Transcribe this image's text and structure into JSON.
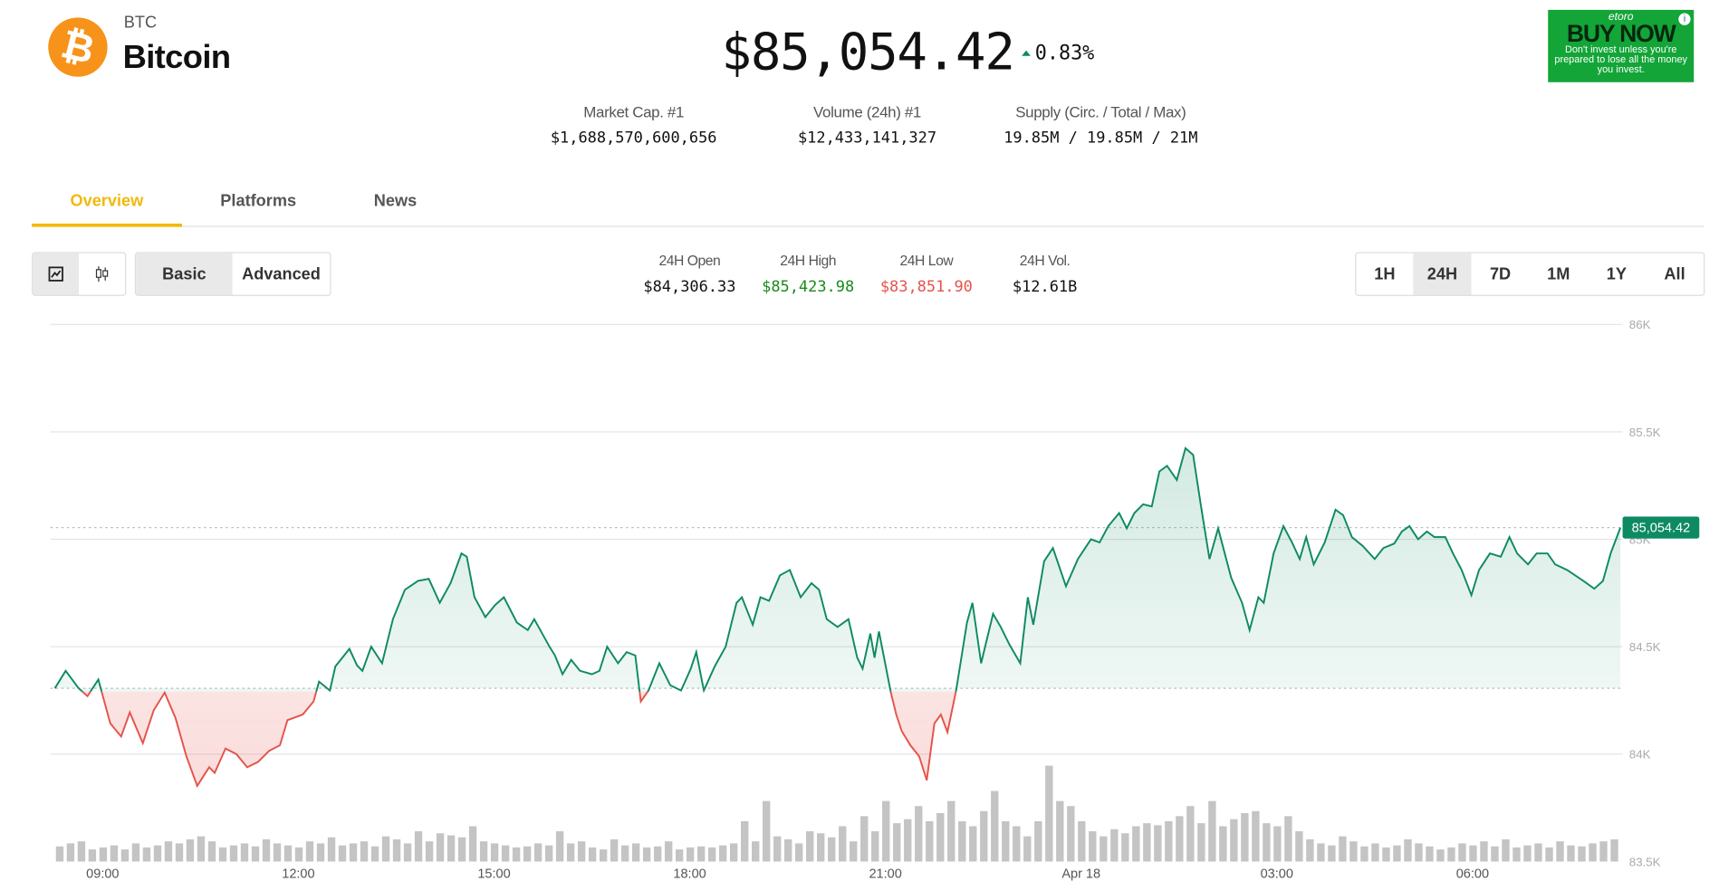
{
  "coin": {
    "symbol": "BTC",
    "name": "Bitcoin",
    "logo_icon": "bitcoin-logo-icon",
    "price": "$85,054.42",
    "change": "0.83%",
    "change_direction": "up"
  },
  "stats": [
    {
      "label": "Market Cap. #1",
      "value": "$1,688,570,600,656"
    },
    {
      "label": "Volume (24h) #1",
      "value": "$12,433,141,327"
    },
    {
      "label": "Supply (Circ. / Total / Max)",
      "value": "19.85M / 19.85M / 21M"
    }
  ],
  "ad": {
    "brand": "etoro",
    "cta": "BUY NOW",
    "disclaimer": "Don't invest unless you're prepared to lose all the money you invest."
  },
  "tabs": [
    {
      "label": "Overview",
      "active": true
    },
    {
      "label": "Platforms"
    },
    {
      "label": "News"
    }
  ],
  "chart_type_buttons": [
    {
      "icon": "line-chart-icon",
      "selected": true
    },
    {
      "icon": "candlestick-icon"
    }
  ],
  "mode_buttons": [
    {
      "label": "Basic",
      "selected": true
    },
    {
      "label": "Advanced"
    }
  ],
  "ohlv": [
    {
      "label": "24H Open",
      "value": "$84,306.33",
      "color": "#111111"
    },
    {
      "label": "24H High",
      "value": "$85,423.98",
      "color": "#1a8a1a"
    },
    {
      "label": "24H Low",
      "value": "$83,851.90",
      "color": "#e5534b"
    },
    {
      "label": "24H Vol.",
      "value": "$12.61B",
      "color": "#111111"
    }
  ],
  "ranges": [
    {
      "label": "1H"
    },
    {
      "label": "24H",
      "selected": true
    },
    {
      "label": "7D"
    },
    {
      "label": "1M"
    },
    {
      "label": "1Y"
    },
    {
      "label": "All"
    }
  ],
  "colors": {
    "up": "#0e8a63",
    "down": "#e5534b",
    "accent": "#f0b90b",
    "volume": "#c4c4c4"
  },
  "chart_data": {
    "type": "line",
    "ylim": [
      83500,
      86000
    ],
    "y_ticks": [
      "86K",
      "85.5K",
      "85K",
      "84.5K",
      "84K",
      "83.5K"
    ],
    "y_tick_values": [
      86000,
      85500,
      85000,
      84500,
      84000,
      83500
    ],
    "x_ticks": [
      "09:00",
      "12:00",
      "15:00",
      "18:00",
      "21:00",
      "Apr 18",
      "03:00",
      "06:00"
    ],
    "baseline": 84306.33,
    "current_label": "85,054.42",
    "current": 85054.42,
    "grid": true,
    "series": [
      {
        "time": [
          "08:16",
          "08:26",
          "08:38",
          "08:46",
          "08:56",
          "09:07",
          "09:17",
          "09:25",
          "09:37",
          "09:47",
          "09:57",
          "10:07",
          "10:17",
          "10:27",
          "10:38",
          "10:43",
          "10:53",
          "11:03",
          "11:13",
          "11:23",
          "11:33",
          "11:43",
          "11:50",
          "12:04",
          "12:14",
          "12:19",
          "12:29",
          "12:34",
          "12:47",
          "12:54",
          "12:59",
          "13:07",
          "13:17",
          "13:27",
          "13:38",
          "13:50",
          "14:00",
          "14:10",
          "14:20",
          "14:30",
          "14:35",
          "14:42",
          "14:52",
          "15:01",
          "15:09",
          "15:21",
          "15:31",
          "15:37",
          "15:51",
          "15:56",
          "16:03",
          "16:11",
          "16:19",
          "16:30",
          "16:37",
          "16:44",
          "16:54",
          "17:02",
          "17:10",
          "17:15",
          "17:22",
          "17:32",
          "17:42",
          "17:52",
          "18:01",
          "18:06",
          "18:13",
          "18:23",
          "18:33",
          "18:43",
          "18:48",
          "18:58",
          "19:05",
          "19:13",
          "19:23",
          "19:32",
          "19:42",
          "19:52",
          "19:59",
          "20:06",
          "20:16",
          "20:26",
          "20:34",
          "20:39",
          "20:46",
          "20:50",
          "20:54",
          "21:05",
          "21:10",
          "21:15",
          "21:23",
          "21:31",
          "21:38",
          "21:45",
          "21:51",
          "21:57",
          "22:05",
          "22:15",
          "22:20",
          "22:28",
          "22:39",
          "22:46",
          "22:54",
          "23:04",
          "23:11",
          "23:16",
          "23:26",
          "23:34",
          "23:46",
          "23:57",
          "00:09",
          "00:17",
          "00:25",
          "00:35",
          "00:42",
          "00:49",
          "00:57",
          "01:05",
          "01:12",
          "01:19",
          "01:28",
          "01:36",
          "01:43",
          "01:50",
          "01:58",
          "02:06",
          "02:18",
          "02:28",
          "02:35",
          "02:43",
          "02:48",
          "02:57",
          "03:06",
          "03:14",
          "03:21",
          "03:27",
          "03:34",
          "03:44",
          "03:54",
          "04:01",
          "04:09",
          "04:19",
          "04:30",
          "04:38",
          "04:48",
          "04:55",
          "05:02",
          "05:10",
          "05:18",
          "05:25",
          "05:35",
          "05:42",
          "05:50",
          "05:59",
          "06:06",
          "06:16",
          "06:26",
          "06:34",
          "06:41",
          "06:51",
          "06:59",
          "07:09",
          "07:16",
          "07:27",
          "07:42",
          "07:52",
          "08:00",
          "08:07",
          "08:16"
        ],
        "price": [
          84306,
          84388,
          84306,
          84270,
          84347,
          84143,
          84082,
          84194,
          84051,
          84204,
          84286,
          84168,
          83990,
          83852,
          83939,
          83913,
          84026,
          84000,
          83939,
          83964,
          84015,
          84041,
          84158,
          84184,
          84245,
          84337,
          84296,
          84408,
          84490,
          84413,
          84388,
          84500,
          84423,
          84628,
          84765,
          84806,
          84816,
          84704,
          84796,
          84934,
          84919,
          84730,
          84638,
          84694,
          84730,
          84612,
          84577,
          84628,
          84500,
          84459,
          84372,
          84439,
          84388,
          84372,
          84388,
          84500,
          84423,
          84475,
          84459,
          84245,
          84296,
          84423,
          84321,
          84296,
          84398,
          84475,
          84296,
          84408,
          84500,
          84704,
          84730,
          84602,
          84730,
          84714,
          84832,
          84857,
          84730,
          84796,
          84765,
          84628,
          84592,
          84628,
          84449,
          84398,
          84561,
          84449,
          84571,
          84286,
          84184,
          84107,
          84041,
          83990,
          83878,
          84143,
          84184,
          84102,
          84296,
          84612,
          84704,
          84423,
          84653,
          84592,
          84510,
          84423,
          84730,
          84602,
          84898,
          84959,
          84781,
          84908,
          85000,
          84985,
          85061,
          85122,
          85051,
          85122,
          85163,
          85153,
          85316,
          85342,
          85276,
          85424,
          85393,
          85163,
          84908,
          85051,
          84821,
          84704,
          84577,
          84730,
          84704,
          84934,
          85061,
          84985,
          84908,
          85010,
          84883,
          84985,
          85138,
          85112,
          85010,
          84969,
          84908,
          84959,
          84980,
          85036,
          85061,
          85000,
          85036,
          85010,
          85010,
          84934,
          84857,
          84740,
          84857,
          84934,
          84919,
          85010,
          84934,
          84883,
          84934,
          84934,
          84883,
          84857,
          84806,
          84770,
          84806,
          84934,
          85054
        ]
      }
    ],
    "volume_relative": [
      15,
      18,
      20,
      12,
      14,
      16,
      12,
      18,
      14,
      16,
      20,
      18,
      22,
      25,
      20,
      14,
      16,
      18,
      15,
      22,
      18,
      16,
      14,
      20,
      18,
      24,
      16,
      18,
      20,
      15,
      25,
      22,
      18,
      30,
      20,
      28,
      26,
      24,
      35,
      20,
      18,
      16,
      14,
      15,
      18,
      16,
      30,
      18,
      20,
      14,
      12,
      22,
      16,
      18,
      14,
      15,
      20,
      12,
      14,
      15,
      14,
      16,
      18,
      40,
      20,
      60,
      25,
      22,
      18,
      30,
      28,
      24,
      35,
      20,
      45,
      30,
      60,
      38,
      42,
      55,
      40,
      48,
      60,
      40,
      35,
      50,
      70,
      40,
      35,
      25,
      40,
      95,
      60,
      55,
      40,
      30,
      25,
      32,
      28,
      35,
      38,
      36,
      40,
      45,
      55,
      38,
      60,
      35,
      42,
      48,
      50,
      38,
      35,
      45,
      30,
      22,
      18,
      16,
      25,
      20,
      15,
      18,
      14,
      16,
      22,
      18,
      15,
      12,
      14,
      18,
      16,
      20,
      15,
      22,
      14,
      16,
      18,
      14,
      20,
      16,
      15,
      18,
      20,
      22
    ]
  }
}
